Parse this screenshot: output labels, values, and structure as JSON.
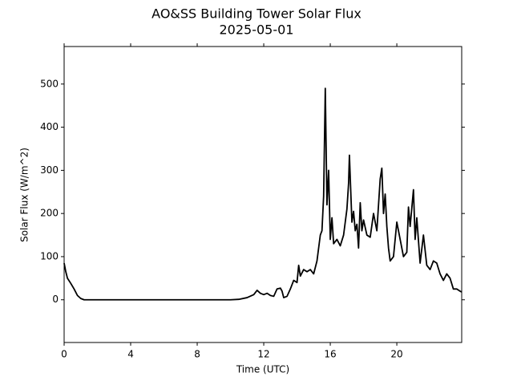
{
  "chart_data": {
    "type": "line",
    "title": "AO&SS Building Tower Solar Flux",
    "subtitle": "2025-05-01",
    "x_label": "Time (UTC)",
    "y_label": "Solar Flux (W/m^2)",
    "color": "#000000",
    "xlim": [
      0,
      23.9
    ],
    "xticks": [
      0,
      4,
      8,
      12,
      16,
      20
    ],
    "ylim": [
      -99,
      587
    ],
    "yticks": [
      0,
      100,
      200,
      300,
      400,
      500
    ],
    "x": [
      0,
      0.1,
      0.2,
      0.4,
      0.6,
      0.8,
      1.0,
      1.2,
      2,
      4,
      6,
      8,
      10,
      10.5,
      11,
      11.4,
      11.6,
      11.8,
      12,
      12.2,
      12.4,
      12.6,
      12.8,
      13,
      13.1,
      13.2,
      13.4,
      13.6,
      13.8,
      14.0,
      14.1,
      14.2,
      14.4,
      14.6,
      14.8,
      15.0,
      15.2,
      15.4,
      15.5,
      15.6,
      15.7,
      15.8,
      15.9,
      16.0,
      16.1,
      16.2,
      16.4,
      16.6,
      16.8,
      17.0,
      17.1,
      17.15,
      17.3,
      17.4,
      17.5,
      17.6,
      17.7,
      17.8,
      17.9,
      18.0,
      18.2,
      18.4,
      18.6,
      18.8,
      19.0,
      19.1,
      19.2,
      19.3,
      19.4,
      19.5,
      19.6,
      19.8,
      20.0,
      20.2,
      20.4,
      20.6,
      20.7,
      20.8,
      21.0,
      21.1,
      21.2,
      21.4,
      21.6,
      21.8,
      22.0,
      22.2,
      22.4,
      22.6,
      22.8,
      23.0,
      23.2,
      23.4,
      23.6,
      23.8,
      23.9
    ],
    "values": [
      85,
      65,
      50,
      38,
      25,
      10,
      3,
      0,
      0,
      0,
      0,
      0,
      0,
      1,
      5,
      12,
      22,
      15,
      12,
      15,
      10,
      8,
      25,
      27,
      20,
      5,
      8,
      25,
      45,
      40,
      80,
      55,
      70,
      65,
      70,
      60,
      90,
      150,
      160,
      240,
      490,
      220,
      300,
      140,
      190,
      130,
      140,
      125,
      150,
      210,
      270,
      335,
      180,
      205,
      160,
      175,
      120,
      225,
      160,
      185,
      150,
      145,
      200,
      160,
      280,
      305,
      200,
      245,
      170,
      120,
      90,
      100,
      180,
      140,
      100,
      110,
      215,
      170,
      255,
      140,
      190,
      85,
      150,
      80,
      70,
      90,
      85,
      60,
      45,
      60,
      50,
      25,
      25,
      20,
      18
    ]
  }
}
